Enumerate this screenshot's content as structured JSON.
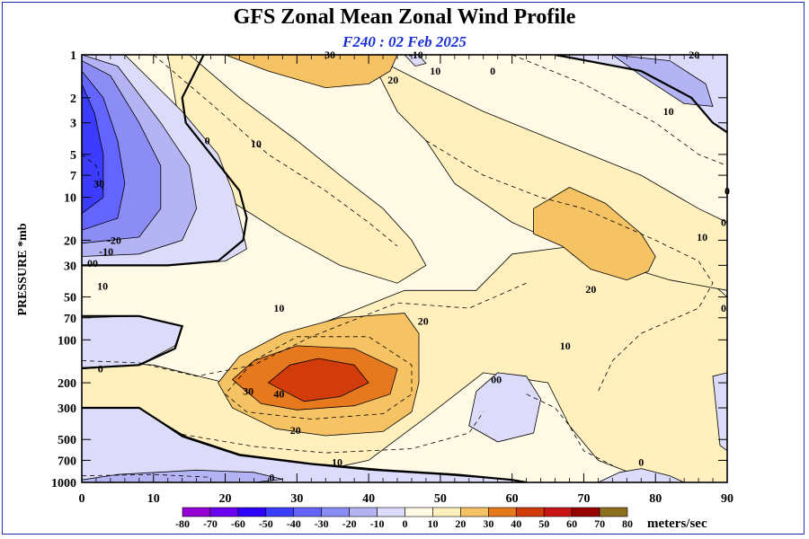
{
  "chart_data": {
    "type": "heatmap",
    "title": "GFS Zonal Mean Zonal Wind Profile",
    "subtitle": "F240 : 02 Feb 2025",
    "xlabel": "",
    "ylabel": "PRESSURE *mb",
    "xlim": [
      0,
      90
    ],
    "ylim": [
      1000,
      1
    ],
    "y_scale": "log",
    "x_ticks": [
      0,
      10,
      20,
      30,
      40,
      50,
      60,
      70,
      80,
      90
    ],
    "y_ticks": [
      1,
      2,
      3,
      5,
      7,
      10,
      20,
      30,
      50,
      70,
      100,
      200,
      300,
      500,
      700,
      1000
    ],
    "color_levels": [
      -80,
      -70,
      -60,
      -50,
      -40,
      -30,
      -20,
      -10,
      0,
      10,
      20,
      30,
      40,
      50,
      60,
      70,
      80
    ],
    "colorbar_unit": "meters/sec",
    "colors": {
      "-80..-70": "#9400d3",
      "-70..-60": "#6a00f0",
      "-60..-50": "#2d00ff",
      "-50..-40": "#3c3cff",
      "-40..-30": "#6464ff",
      "-30..-20": "#8c8cf5",
      "-20..-10": "#b4b4f5",
      "-10..0": "#dcdcfa",
      "0..10": "#fffae6",
      "10..20": "#fff0be",
      "20..30": "#f5c364",
      "30..40": "#e6781e",
      "40..50": "#d23c0a",
      "50..60": "#c81414",
      "60..70": "#960000",
      "70..80": "#8c6e1e"
    },
    "contour_labels": [
      {
        "text": "30",
        "x": 34.6,
        "p": 1.0
      },
      {
        "text": "-10",
        "x": 46.6,
        "p": 1.0
      },
      {
        "text": "20",
        "x": 85.4,
        "p": 1.0
      },
      {
        "text": "20",
        "x": 43.4,
        "p": 1.5
      },
      {
        "text": "10",
        "x": 49.3,
        "p": 1.3
      },
      {
        "text": "0",
        "x": 57.3,
        "p": 1.3
      },
      {
        "text": "10",
        "x": 81.8,
        "p": 2.5
      },
      {
        "text": "0",
        "x": 17.5,
        "p": 4.0
      },
      {
        "text": "10",
        "x": 24.3,
        "p": 4.2
      },
      {
        "text": "30",
        "x": 2.4,
        "p": 8.0
      },
      {
        "text": "0",
        "x": 90.0,
        "p": 9.0
      },
      {
        "text": "-20",
        "x": 4.5,
        "p": 20.0
      },
      {
        "text": "-10",
        "x": 3.4,
        "p": 24.0
      },
      {
        "text": "00",
        "x": 1.5,
        "p": 29.0
      },
      {
        "text": "0",
        "x": 89.5,
        "p": 15.0
      },
      {
        "text": "10",
        "x": 86.5,
        "p": 19.0
      },
      {
        "text": "20",
        "x": 71.0,
        "p": 44.0
      },
      {
        "text": "10",
        "x": 2.9,
        "p": 42.0
      },
      {
        "text": "10",
        "x": 27.5,
        "p": 60.0
      },
      {
        "text": "0",
        "x": 89.5,
        "p": 60.0
      },
      {
        "text": "20",
        "x": 47.6,
        "p": 74.0
      },
      {
        "text": "10",
        "x": 67.4,
        "p": 110.0
      },
      {
        "text": "0",
        "x": 2.6,
        "p": 160.0
      },
      {
        "text": "00",
        "x": 57.8,
        "p": 190.0
      },
      {
        "text": "40",
        "x": 27.5,
        "p": 240.0
      },
      {
        "text": "30",
        "x": 23.2,
        "p": 230.0
      },
      {
        "text": "20",
        "x": 29.8,
        "p": 430.0
      },
      {
        "text": "10",
        "x": 35.6,
        "p": 720.0
      },
      {
        "text": "0",
        "x": 26.5,
        "p": 920.0
      },
      {
        "text": "0",
        "x": 78.0,
        "p": 720.0
      }
    ],
    "grid": false,
    "legend": "bottom"
  }
}
